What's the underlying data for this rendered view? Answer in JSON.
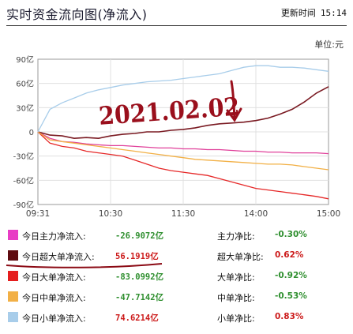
{
  "header": {
    "title": "实时资金流向图(净流入)",
    "update_label": "更新时间",
    "update_time": "15:14"
  },
  "unit_label": "单位:元",
  "handwritten_annotation": "2021.02.02",
  "chart_data": {
    "type": "line",
    "x_ticks": [
      "09:31",
      "10:30",
      "11:30",
      "14:00",
      "15:00"
    ],
    "y_ticks": [
      "90亿",
      "60亿",
      "30亿",
      "0",
      "-30亿",
      "-60亿",
      "-90亿"
    ],
    "ylim": [
      -90,
      90
    ],
    "x": [
      0,
      10,
      20,
      30,
      40,
      50,
      60,
      70,
      80,
      90,
      100,
      110,
      120,
      130,
      140,
      150,
      160,
      170,
      180,
      190,
      200,
      210,
      220,
      230,
      240
    ],
    "series": [
      {
        "name": "今日主力净流入",
        "color": "#e0409a",
        "values": [
          0,
          -8,
          -12,
          -13,
          -15,
          -16,
          -17,
          -17,
          -18,
          -19,
          -20,
          -20,
          -21,
          -21,
          -22,
          -22,
          -23,
          -24,
          -24,
          -25,
          -25,
          -26,
          -26,
          -26,
          -27
        ]
      },
      {
        "name": "今日超大单净流入",
        "color": "#7a1a22",
        "values": [
          0,
          -4,
          -5,
          -8,
          -7,
          -8,
          -5,
          -3,
          -2,
          0,
          0,
          2,
          3,
          5,
          8,
          10,
          11,
          12,
          14,
          17,
          22,
          28,
          37,
          48,
          56
        ]
      },
      {
        "name": "今日大单净流入",
        "color": "#e62828",
        "values": [
          0,
          -14,
          -18,
          -20,
          -24,
          -26,
          -28,
          -30,
          -35,
          -40,
          -45,
          -48,
          -50,
          -52,
          -54,
          -58,
          -62,
          -66,
          -70,
          -72,
          -74,
          -76,
          -78,
          -80,
          -83
        ]
      },
      {
        "name": "今日中单净流入",
        "color": "#f2b046",
        "values": [
          0,
          -10,
          -12,
          -14,
          -16,
          -18,
          -20,
          -22,
          -24,
          -26,
          -28,
          -30,
          -32,
          -34,
          -35,
          -36,
          -37,
          -38,
          -39,
          -40,
          -40,
          -41,
          -43,
          -45,
          -47
        ]
      },
      {
        "name": "今日小单净流入",
        "color": "#a8cdea",
        "values": [
          0,
          28,
          36,
          42,
          48,
          52,
          55,
          58,
          60,
          62,
          63,
          64,
          66,
          68,
          70,
          72,
          76,
          80,
          82,
          82,
          80,
          80,
          79,
          77,
          75
        ]
      }
    ]
  },
  "legend": [
    {
      "color": "#e83ec5",
      "label": "今日主力净流入:",
      "value": "-26.9072亿",
      "value_color": "green",
      "ratio_label": "主力净比:",
      "ratio_value": "-0.30%",
      "ratio_color": "green"
    },
    {
      "color": "#5e0b10",
      "label": "今日超大单净流入:",
      "value": "56.1919亿",
      "value_color": "red",
      "ratio_label": "超大单净比:",
      "ratio_value": "0.62%",
      "ratio_color": "red"
    },
    {
      "color": "#e51e1e",
      "label": "今日大单净流入:",
      "value": "-83.0992亿",
      "value_color": "green",
      "ratio_label": "大单净比:",
      "ratio_value": "-0.92%",
      "ratio_color": "green"
    },
    {
      "color": "#f2b046",
      "label": "今日中单净流入:",
      "value": "-47.7142亿",
      "value_color": "green",
      "ratio_label": "中单净比:",
      "ratio_value": "-0.53%",
      "ratio_color": "green"
    },
    {
      "color": "#a8cdea",
      "label": "今日小单净流入:",
      "value": "74.6214亿",
      "value_color": "red",
      "ratio_label": "小单净比:",
      "ratio_value": "0.83%",
      "ratio_color": "red"
    }
  ]
}
